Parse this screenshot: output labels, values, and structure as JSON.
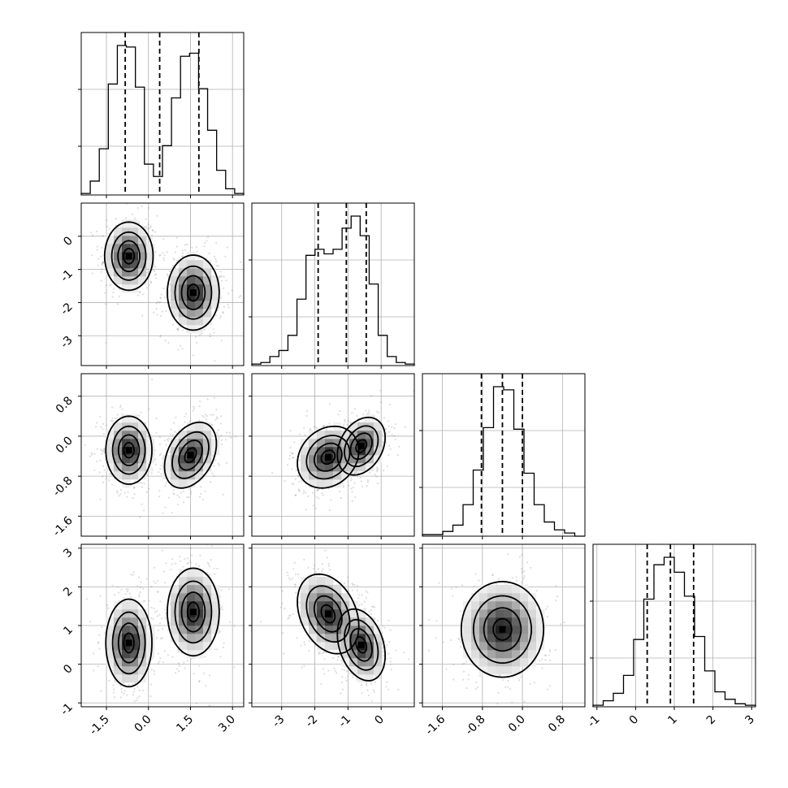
{
  "chart_data": {
    "type": "corner",
    "title": "",
    "grid": true,
    "parameters": [
      {
        "range": [
          -2.4,
          3.4
        ],
        "ticks": [
          "-1.5",
          "0.0",
          "1.5",
          "3.0"
        ],
        "tick_values": [
          -1.5,
          0.0,
          1.5,
          3.0
        ],
        "quantiles": [
          -0.83,
          0.4,
          1.8
        ],
        "hist_counts": [
          0.01,
          0.09,
          0.3,
          0.72,
          0.97,
          0.96,
          0.7,
          0.2,
          0.12,
          0.32,
          0.63,
          0.9,
          0.92,
          0.69,
          0.42,
          0.16,
          0.04,
          0.01
        ],
        "modes": [
          {
            "center": -0.7,
            "sd": 0.45,
            "weight": 0.5
          },
          {
            "center": 1.6,
            "sd": 0.5,
            "weight": 0.5
          }
        ]
      },
      {
        "range": [
          -3.9,
          1.0
        ],
        "ticks": [
          "-3",
          "-2",
          "-1",
          "0"
        ],
        "tick_values": [
          -3,
          -2,
          -1,
          0
        ],
        "quantiles": [
          -1.9,
          -1.05,
          -0.45
        ],
        "hist_counts": [
          0.01,
          0.02,
          0.06,
          0.1,
          0.2,
          0.44,
          0.73,
          0.77,
          0.74,
          0.77,
          0.91,
          0.99,
          0.86,
          0.54,
          0.2,
          0.06,
          0.02,
          0.01
        ],
        "modes": [
          {
            "center": -1.6,
            "sd": 0.45,
            "weight": 0.5
          },
          {
            "center": -0.6,
            "sd": 0.4,
            "weight": 0.5
          }
        ]
      },
      {
        "range": [
          -2.0,
          1.25
        ],
        "ticks": [
          "-1.6",
          "-0.8",
          "0.0",
          "0.8"
        ],
        "tick_values": [
          -1.6,
          -0.8,
          0.0,
          0.8
        ],
        "quantiles": [
          -0.82,
          -0.4,
          0.0
        ],
        "hist_counts": [
          0.01,
          0.01,
          0.03,
          0.07,
          0.2,
          0.42,
          0.69,
          0.95,
          0.93,
          0.68,
          0.4,
          0.2,
          0.09,
          0.04,
          0.02,
          0.0
        ],
        "modes": [
          {
            "center": -0.4,
            "sd": 0.4,
            "weight": 1.0
          }
        ]
      },
      {
        "range": [
          -1.1,
          3.1
        ],
        "ticks": [
          "-1",
          "0",
          "1",
          "2",
          "3"
        ],
        "tick_values": [
          -1,
          0,
          1,
          2,
          3
        ],
        "quantiles": [
          0.3,
          0.9,
          1.5
        ],
        "hist_counts": [
          0.01,
          0.04,
          0.09,
          0.21,
          0.45,
          0.72,
          0.95,
          1.0,
          0.9,
          0.74,
          0.47,
          0.24,
          0.1,
          0.05,
          0.02,
          0.01
        ],
        "modes": [
          {
            "center": 0.9,
            "sd": 0.6,
            "weight": 1.0
          }
        ]
      }
    ],
    "pairs": [
      {
        "x": 0,
        "y": 1,
        "clusters": [
          {
            "center": [
              -0.7,
              -0.6
            ],
            "sd": [
              0.42,
              0.5
            ],
            "rho": 0.0
          },
          {
            "center": [
              1.6,
              -1.7
            ],
            "sd": [
              0.45,
              0.55
            ],
            "rho": 0.0
          }
        ]
      },
      {
        "x": 0,
        "y": 2,
        "clusters": [
          {
            "center": [
              -0.7,
              -0.28
            ],
            "sd": [
              0.4,
              0.33
            ],
            "rho": 0.0
          },
          {
            "center": [
              1.5,
              -0.38
            ],
            "sd": [
              0.45,
              0.32
            ],
            "rho": 0.35
          }
        ]
      },
      {
        "x": 1,
        "y": 2,
        "clusters": [
          {
            "center": [
              -1.6,
              -0.42
            ],
            "sd": [
              0.45,
              0.3
            ],
            "rho": 0.2
          },
          {
            "center": [
              -0.6,
              -0.2
            ],
            "sd": [
              0.35,
              0.28
            ],
            "rho": 0.3
          }
        ]
      },
      {
        "x": 0,
        "y": 3,
        "clusters": [
          {
            "center": [
              -0.7,
              0.55
            ],
            "sd": [
              0.4,
              0.55
            ],
            "rho": 0.0
          },
          {
            "center": [
              1.6,
              1.35
            ],
            "sd": [
              0.45,
              0.55
            ],
            "rho": 0.0
          }
        ]
      },
      {
        "x": 1,
        "y": 3,
        "clusters": [
          {
            "center": [
              -1.6,
              1.3
            ],
            "sd": [
              0.45,
              0.5
            ],
            "rho": -0.3
          },
          {
            "center": [
              -0.6,
              0.5
            ],
            "sd": [
              0.35,
              0.45
            ],
            "rho": -0.3
          }
        ]
      },
      {
        "x": 2,
        "y": 3,
        "clusters": [
          {
            "center": [
              -0.4,
              0.9
            ],
            "sd": [
              0.4,
              0.6
            ],
            "rho": 0.0
          }
        ]
      }
    ],
    "contour_levels": [
      0.12,
      0.35,
      0.65,
      0.9
    ]
  }
}
